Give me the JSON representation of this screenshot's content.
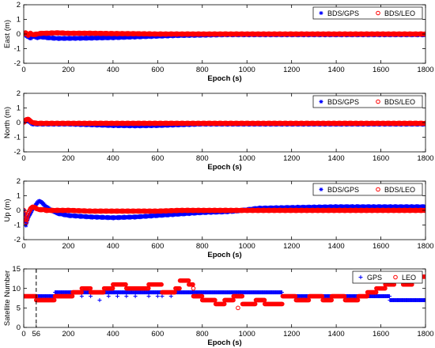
{
  "chart_data": [
    {
      "type": "scatter",
      "xlabel": "Epoch (s)",
      "ylabel": "East (m)",
      "xlim": [
        0,
        1800
      ],
      "ylim": [
        -2,
        2
      ],
      "xticks": [
        0,
        200,
        400,
        600,
        800,
        1000,
        1200,
        1400,
        1600,
        1800
      ],
      "yticks": [
        -2,
        -1,
        0,
        1,
        2
      ],
      "grid": false,
      "legend": "top-right",
      "series": [
        {
          "name": "BDS/GPS",
          "marker": "*",
          "color": "#0000ff",
          "x": [
            0,
            10,
            20,
            30,
            40,
            60,
            80,
            100,
            150,
            200,
            300,
            400,
            500,
            600,
            700,
            800,
            900,
            1000,
            1200,
            1400,
            1600,
            1800
          ],
          "y": [
            0,
            -0.1,
            -0.2,
            -0.3,
            -0.15,
            -0.25,
            -0.2,
            -0.25,
            -0.3,
            -0.3,
            -0.28,
            -0.25,
            -0.2,
            -0.15,
            -0.1,
            -0.08,
            -0.05,
            -0.05,
            -0.05,
            -0.05,
            -0.05,
            -0.05
          ]
        },
        {
          "name": "BDS/LEO",
          "marker": "o",
          "color": "#ff0000",
          "x": [
            0,
            10,
            20,
            30,
            40,
            60,
            80,
            100,
            150,
            200,
            300,
            400,
            500,
            600,
            700,
            800,
            900,
            1000,
            1200,
            1400,
            1600,
            1800
          ],
          "y": [
            0,
            0.1,
            -0.1,
            0.05,
            -0.05,
            0,
            0.05,
            0.05,
            0.08,
            0.05,
            0.05,
            0.03,
            0.02,
            0,
            0,
            0,
            0,
            0,
            0,
            0,
            0,
            0
          ]
        }
      ]
    },
    {
      "type": "scatter",
      "xlabel": "Epoch (s)",
      "ylabel": "North (m)",
      "xlim": [
        0,
        1800
      ],
      "ylim": [
        -2,
        2
      ],
      "xticks": [
        0,
        200,
        400,
        600,
        800,
        1000,
        1200,
        1400,
        1600,
        1800
      ],
      "yticks": [
        -2,
        -1,
        0,
        1,
        2
      ],
      "grid": false,
      "legend": "top-right",
      "series": [
        {
          "name": "BDS/GPS",
          "marker": "*",
          "color": "#0000ff",
          "x": [
            0,
            10,
            20,
            30,
            40,
            60,
            80,
            100,
            200,
            300,
            400,
            500,
            600,
            700,
            800,
            900,
            1000,
            1200,
            1400,
            1600,
            1800
          ],
          "y": [
            0,
            0.15,
            0.1,
            0,
            -0.1,
            -0.1,
            -0.1,
            -0.1,
            -0.1,
            -0.15,
            -0.2,
            -0.22,
            -0.2,
            -0.15,
            -0.1,
            -0.1,
            -0.1,
            -0.1,
            -0.1,
            -0.1,
            -0.1
          ]
        },
        {
          "name": "BDS/LEO",
          "marker": "o",
          "color": "#ff0000",
          "x": [
            0,
            10,
            20,
            30,
            40,
            60,
            80,
            100,
            200,
            300,
            400,
            500,
            600,
            700,
            800,
            900,
            1000,
            1200,
            1400,
            1600,
            1800
          ],
          "y": [
            0,
            0.2,
            0.25,
            0.1,
            0,
            -0.05,
            -0.05,
            -0.05,
            -0.05,
            -0.05,
            -0.05,
            -0.05,
            -0.05,
            -0.05,
            -0.05,
            -0.05,
            -0.05,
            -0.05,
            -0.05,
            -0.05,
            -0.05
          ]
        }
      ]
    },
    {
      "type": "scatter",
      "xlabel": "Epoch (s)",
      "ylabel": "Up (m)",
      "xlim": [
        0,
        1800
      ],
      "ylim": [
        -2,
        2
      ],
      "xticks": [
        0,
        200,
        400,
        600,
        800,
        1000,
        1200,
        1400,
        1600,
        1800
      ],
      "yticks": [
        -2,
        -1,
        0,
        1,
        2
      ],
      "grid": false,
      "legend": "top-right",
      "series": [
        {
          "name": "BDS/GPS",
          "marker": "*",
          "color": "#0000ff",
          "x": [
            0,
            5,
            10,
            20,
            30,
            40,
            50,
            60,
            70,
            80,
            90,
            100,
            120,
            150,
            200,
            300,
            400,
            500,
            600,
            700,
            800,
            900,
            950,
            1000,
            1050,
            1200,
            1400,
            1600,
            1800
          ],
          "y": [
            0,
            -0.5,
            -1.0,
            -0.5,
            -0.2,
            0.1,
            0.3,
            0.5,
            0.65,
            0.55,
            0.4,
            0.25,
            0.05,
            -0.2,
            -0.35,
            -0.45,
            -0.5,
            -0.45,
            -0.35,
            -0.25,
            -0.15,
            -0.1,
            -0.05,
            0.05,
            0.15,
            0.2,
            0.25,
            0.25,
            0.25
          ]
        },
        {
          "name": "BDS/LEO",
          "marker": "o",
          "color": "#ff0000",
          "x": [
            0,
            5,
            10,
            20,
            30,
            40,
            50,
            60,
            70,
            80,
            90,
            100,
            120,
            150,
            200,
            300,
            400,
            500,
            600,
            700,
            800,
            900,
            950,
            1000,
            1050,
            1200,
            1400,
            1600,
            1800
          ],
          "y": [
            0,
            -0.4,
            -0.8,
            -0.2,
            0.1,
            0.25,
            0.2,
            0.1,
            0.05,
            0.05,
            0.05,
            0,
            0,
            0,
            0,
            -0.05,
            -0.05,
            -0.05,
            -0.05,
            0,
            0,
            0,
            0,
            0,
            0,
            0,
            0,
            0,
            0
          ]
        }
      ]
    },
    {
      "type": "scatter",
      "xlabel": "Epoch (s)",
      "ylabel": "Satellite Number",
      "xlim": [
        0,
        1800
      ],
      "ylim": [
        0,
        15
      ],
      "xticks": [
        0,
        56,
        200,
        400,
        600,
        800,
        1000,
        1200,
        1400,
        1600,
        1800
      ],
      "yticks": [
        0,
        5,
        10,
        15
      ],
      "grid": false,
      "legend": "top-right",
      "annotation": {
        "x": 56,
        "style": "dashed vertical line"
      },
      "series": [
        {
          "name": "GPS",
          "marker": "+",
          "color": "#0000ff",
          "segments": [
            {
              "x0": 0,
              "x1": 60,
              "y": 8
            },
            {
              "x0": 60,
              "x1": 140,
              "y": 8
            },
            {
              "x0": 140,
              "x1": 1160,
              "y": 9
            },
            {
              "x0": 1160,
              "x1": 1480,
              "y": 8
            },
            {
              "x0": 1480,
              "x1": 1640,
              "y": 8
            },
            {
              "x0": 1640,
              "x1": 1800,
              "y": 7
            }
          ],
          "extra_points": {
            "x": [
              160,
              200,
              260,
              300,
              340,
              380,
              420,
              460,
              500,
              560,
              600,
              620,
              660
            ],
            "y": [
              8,
              8,
              8,
              8,
              7,
              8,
              8,
              8,
              8,
              8,
              8,
              8,
              8
            ]
          }
        },
        {
          "name": "LEO",
          "marker": "o",
          "color": "#ff0000",
          "segments": [
            {
              "x0": 0,
              "x1": 56,
              "y": 8
            },
            {
              "x0": 56,
              "x1": 140,
              "y": 7
            },
            {
              "x0": 140,
              "x1": 220,
              "y": 8
            },
            {
              "x0": 220,
              "x1": 260,
              "y": 9
            },
            {
              "x0": 260,
              "x1": 300,
              "y": 10
            },
            {
              "x0": 300,
              "x1": 360,
              "y": 9
            },
            {
              "x0": 360,
              "x1": 400,
              "y": 10
            },
            {
              "x0": 400,
              "x1": 460,
              "y": 11
            },
            {
              "x0": 460,
              "x1": 560,
              "y": 10
            },
            {
              "x0": 560,
              "x1": 620,
              "y": 11
            },
            {
              "x0": 620,
              "x1": 680,
              "y": 9
            },
            {
              "x0": 680,
              "x1": 700,
              "y": 10
            },
            {
              "x0": 700,
              "x1": 740,
              "y": 12
            },
            {
              "x0": 740,
              "x1": 760,
              "y": 11
            },
            {
              "x0": 760,
              "x1": 800,
              "y": 8
            },
            {
              "x0": 800,
              "x1": 860,
              "y": 7
            },
            {
              "x0": 860,
              "x1": 900,
              "y": 6
            },
            {
              "x0": 900,
              "x1": 940,
              "y": 7
            },
            {
              "x0": 940,
              "x1": 980,
              "y": 8
            },
            {
              "x0": 980,
              "x1": 1040,
              "y": 6
            },
            {
              "x0": 1040,
              "x1": 1080,
              "y": 7
            },
            {
              "x0": 1080,
              "x1": 1160,
              "y": 6
            },
            {
              "x0": 1160,
              "x1": 1220,
              "y": 8
            },
            {
              "x0": 1220,
              "x1": 1280,
              "y": 7
            },
            {
              "x0": 1280,
              "x1": 1340,
              "y": 8
            },
            {
              "x0": 1340,
              "x1": 1380,
              "y": 7
            },
            {
              "x0": 1380,
              "x1": 1440,
              "y": 8
            },
            {
              "x0": 1440,
              "x1": 1500,
              "y": 7
            },
            {
              "x0": 1500,
              "x1": 1540,
              "y": 8
            },
            {
              "x0": 1540,
              "x1": 1580,
              "y": 9
            },
            {
              "x0": 1580,
              "x1": 1620,
              "y": 10
            },
            {
              "x0": 1620,
              "x1": 1660,
              "y": 11
            },
            {
              "x0": 1660,
              "x1": 1700,
              "y": 12
            },
            {
              "x0": 1700,
              "x1": 1740,
              "y": 11
            },
            {
              "x0": 1740,
              "x1": 1800,
              "y": 13
            }
          ],
          "extra_points": {
            "x": [
              760,
              960
            ],
            "y": [
              10,
              5
            ]
          }
        }
      ]
    }
  ]
}
